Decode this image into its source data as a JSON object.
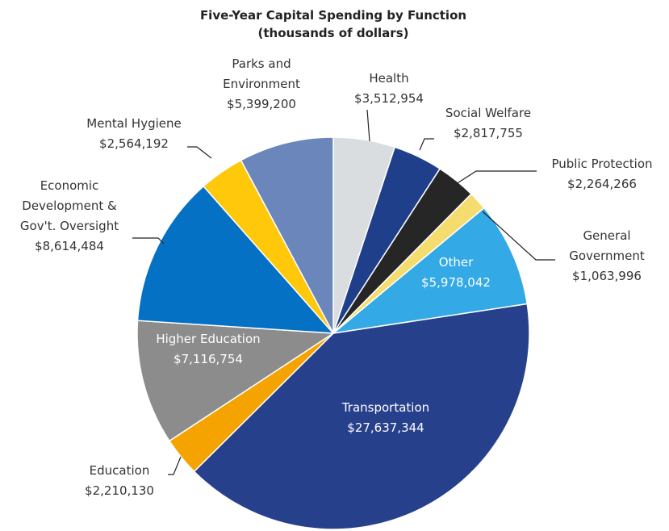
{
  "chart_data": {
    "type": "pie",
    "title": "Five-Year Capital Spending by Function",
    "subtitle": "(thousands of dollars)",
    "categories": [
      "Health",
      "Social Welfare",
      "Public Protection",
      "General Government",
      "Other",
      "Transportation",
      "Education",
      "Higher Education",
      "Economic Development & Gov't. Oversight",
      "Mental Hygiene",
      "Parks and Environment"
    ],
    "values": [
      3512954,
      2817755,
      2264266,
      1063996,
      5978042,
      27637344,
      2210130,
      7116754,
      8614484,
      2564192,
      5399200
    ],
    "value_labels": [
      "$3,512,954",
      "$2,817,755",
      "$2,264,266",
      "$1,063,996",
      "$5,978,042",
      "$27,637,344",
      "$2,210,130",
      "$7,116,754",
      "$8,614,484",
      "$2,564,192",
      "$5,399,200"
    ],
    "colors": [
      "#d9dde0",
      "#1f3f8a",
      "#262626",
      "#f5dc6e",
      "#33a9e6",
      "#27408b",
      "#f4a300",
      "#8c8c8c",
      "#0571c4",
      "#ffc80a",
      "#6b86bb"
    ]
  }
}
